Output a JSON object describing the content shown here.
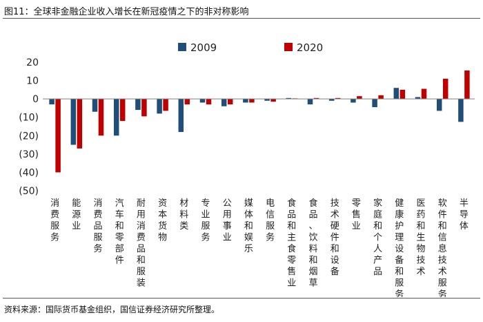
{
  "title": "图11：全球非金融企业收入增长在新冠疫情之下的非对称影响",
  "source": "资料来源：国际货币基金组织，国信证券经济研究所整理。",
  "colors": {
    "series_2009": "#1f4e79",
    "series_2020": "#c00000",
    "axis": "#7f7f7f"
  },
  "chart_data": {
    "type": "bar",
    "title": "全球非金融企业收入增长在新冠疫情之下的非对称影响",
    "xlabel": "",
    "ylabel": "",
    "ylim": [
      -50,
      20
    ],
    "yticks": [
      20,
      10,
      0,
      -10,
      -20,
      -30,
      -40,
      -50
    ],
    "ytick_labels": [
      "20",
      "10",
      "0",
      "(10)",
      "(20)",
      "(30)",
      "(40)",
      "(50)"
    ],
    "legend": "top",
    "grid": false,
    "categories": [
      "消费服务",
      "能源业",
      "消费品服务",
      "汽车和零部件",
      "耐用消费品和服装",
      "资本货物",
      "材料类",
      "专业服务",
      "公用事业",
      "媒体和娱乐",
      "电信服务",
      "食品和主食零售业",
      "食品、饮料和烟草",
      "技术硬件和设备",
      "零售业",
      "家庭和个人产品",
      "健康护理设备和服务",
      "医药和生物技术",
      "软件和信息技术服务",
      "半导体"
    ],
    "series": [
      {
        "name": "2009",
        "values": [
          -3,
          -25,
          -7,
          -20,
          -6,
          -8,
          -18,
          -2,
          -4,
          -2,
          -1,
          0.5,
          -3,
          -1,
          -2,
          -4.5,
          6,
          1,
          -6.5,
          -12.5
        ]
      },
      {
        "name": "2020",
        "values": [
          -40,
          -27,
          -20,
          -12,
          -9.5,
          -6.5,
          -3,
          -3,
          -3,
          -2,
          -1.5,
          0.3,
          0.5,
          0.5,
          1.5,
          2,
          5,
          5.5,
          11,
          15.5
        ]
      }
    ]
  }
}
